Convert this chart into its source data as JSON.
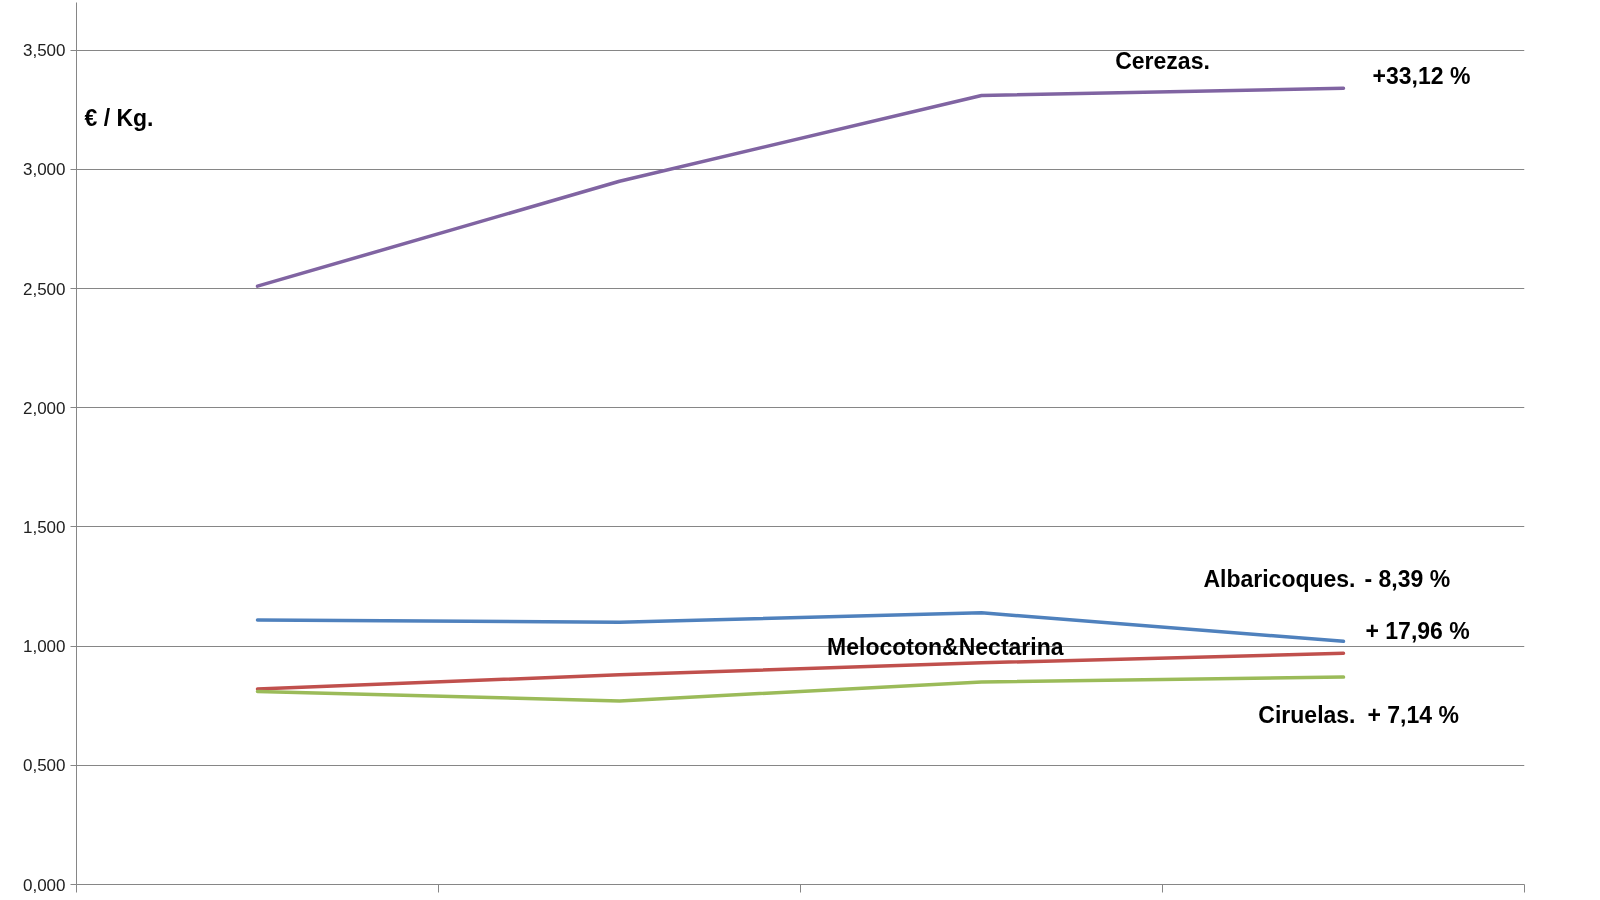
{
  "chart_data": {
    "type": "line",
    "categories": [
      null,
      null,
      null,
      null
    ],
    "ylabel": "€ / Kg.",
    "series": [
      {
        "name": "Cerezas.",
        "color": "#8064a2",
        "values": [
          2.51,
          2.95,
          3.31,
          3.34
        ]
      },
      {
        "name": "Albaricoques.",
        "color": "#4f81bd",
        "values": [
          1.11,
          1.1,
          1.14,
          1.02
        ]
      },
      {
        "name": "Melocoton&Nectarina",
        "color": "#c0504d",
        "values": [
          0.82,
          0.88,
          0.93,
          0.97
        ]
      },
      {
        "name": "Ciruelas.",
        "color": "#9bbb59",
        "values": [
          0.81,
          0.77,
          0.85,
          0.87
        ]
      }
    ],
    "annotations": [
      "+33,12 %",
      "- 8,39 %",
      "+ 17,96 %",
      "+ 7,14 %"
    ],
    "ylim": [
      0,
      3.7
    ],
    "yticks": [
      {
        "value": 0,
        "label": "0,000"
      },
      {
        "value": 0.5,
        "label": "0,500"
      },
      {
        "value": 1,
        "label": "1,000"
      },
      {
        "value": 1.5,
        "label": "1,500"
      },
      {
        "value": 2,
        "label": "2,000"
      },
      {
        "value": 2.5,
        "label": "2,500"
      },
      {
        "value": 3,
        "label": "3,000"
      },
      {
        "value": 3.5,
        "label": "3,500"
      }
    ],
    "grid": "y",
    "tick_labels": "y",
    "line_style": "solid"
  }
}
